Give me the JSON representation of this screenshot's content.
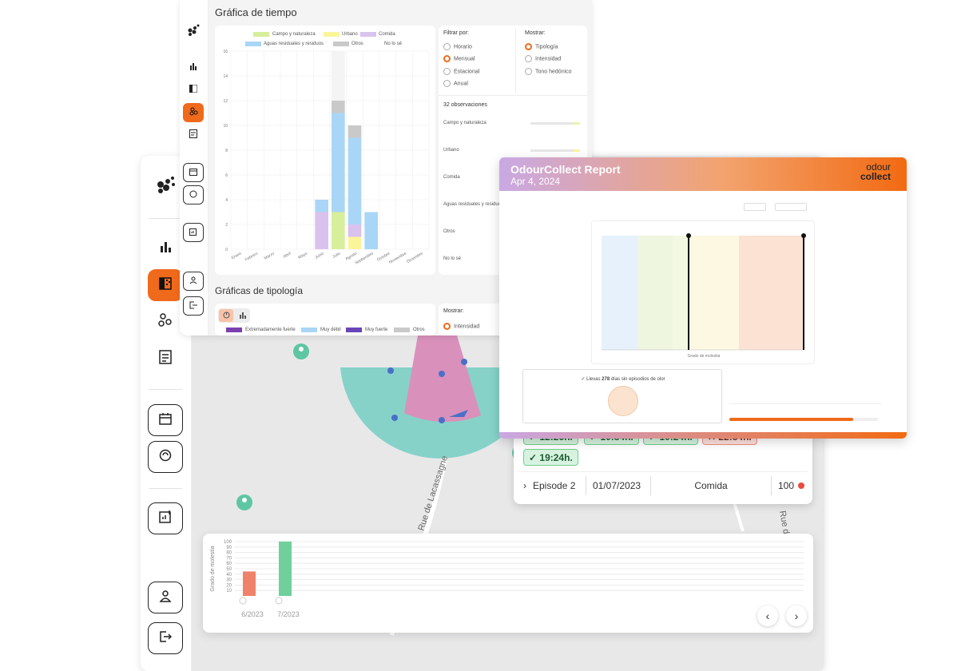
{
  "time_panel": {
    "title": "Gráfica de tiempo",
    "legend": [
      "Campo y naturaleza",
      "Urbano",
      "Comida",
      "Aguas residuales y residuos",
      "Otros",
      "No lo sé"
    ],
    "filter_label": "Filtrar por:",
    "filter_options": [
      "Horario",
      "Mensual",
      "Estacional",
      "Anual"
    ],
    "filter_selected": "Mensual",
    "show_label": "Mostrar:",
    "show_options": [
      "Tipología",
      "Intensidad",
      "Tono hedónico"
    ],
    "show_selected": "Tipología",
    "observations": "32 observaciones",
    "category_rows": [
      "Campo y naturaleza",
      "Urbano",
      "Comida",
      "Aguas residuales y residuos",
      "Otros",
      "No lo sé"
    ]
  },
  "typology_panel": {
    "title": "Gráficas de tipología",
    "show_label": "Mostrar:",
    "show_selected": "Intensidad",
    "legend": [
      "Extremadamente fuerte",
      "Muy débil",
      "Muy fuerte",
      "Otros"
    ]
  },
  "report": {
    "title": "OdourCollect Report",
    "date": "Apr 4, 2024",
    "logo_line1": "odour",
    "logo_line2": "collect",
    "streak_prefix": "✓ Llevas",
    "streak_days": "278",
    "streak_suffix": "días sin episodios de olor",
    "xlabel": "Grado de molestia"
  },
  "episodes": {
    "times": [
      "12:26h.",
      "10:54h.",
      "10:24h.",
      "22:54h.",
      "19:24h."
    ],
    "row": {
      "name": "Episode 2",
      "date": "01/07/2023",
      "type": "Comida",
      "value": "100"
    }
  },
  "map": {
    "street": "Rue de Lacassagne",
    "street2": "Rue de Clair"
  },
  "chart_data": [
    {
      "type": "bar",
      "title": "Gráfica de tiempo",
      "categories": [
        "Enero",
        "Febrero",
        "Marzo",
        "Abril",
        "Mayo",
        "Junio",
        "Julio",
        "Agosto",
        "Septiembre",
        "Octubre",
        "Noviembre",
        "Diciembre"
      ],
      "ylim": [
        0,
        16
      ],
      "yticks": [
        0,
        2,
        4,
        6,
        8,
        10,
        12,
        14,
        16
      ],
      "series": [
        {
          "name": "Campo y naturaleza",
          "values": [
            0,
            0,
            0,
            0,
            0,
            0,
            3,
            0,
            0,
            0,
            0,
            0
          ]
        },
        {
          "name": "Urbano",
          "values": [
            0,
            0,
            0,
            0,
            0,
            0,
            0,
            1,
            0,
            0,
            0,
            0
          ]
        },
        {
          "name": "Comida",
          "values": [
            0,
            0,
            0,
            0,
            0,
            3,
            0,
            1,
            0,
            0,
            0,
            0
          ]
        },
        {
          "name": "Aguas residuales y residuos",
          "values": [
            0,
            0,
            0,
            0,
            0,
            1,
            8,
            7,
            3,
            0,
            0,
            0
          ]
        },
        {
          "name": "Otros",
          "values": [
            0,
            0,
            0,
            0,
            0,
            0,
            1,
            1,
            0,
            0,
            0,
            0
          ]
        },
        {
          "name": "No lo sé",
          "values": [
            0,
            0,
            0,
            0,
            0,
            0,
            4,
            0,
            0,
            0,
            0,
            0
          ]
        }
      ],
      "colors": [
        "#d7ee9a",
        "#fbf59a",
        "#d9c2ee",
        "#a9d6f6",
        "#c9c9c9",
        "#f4f4f4"
      ]
    },
    {
      "type": "bar",
      "ylabel": "Grado de molestia",
      "categories": [
        "6/2023",
        "7/2023"
      ],
      "values": [
        45,
        100
      ],
      "yticks": [
        10,
        20,
        30,
        40,
        50,
        60,
        70,
        80,
        90,
        100
      ],
      "ylim": [
        0,
        100
      ],
      "colors": [
        "#f0826a",
        "#6fd09b"
      ]
    }
  ]
}
